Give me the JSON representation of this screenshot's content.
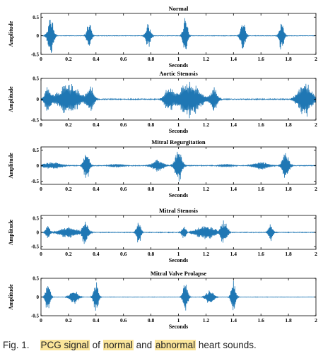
{
  "caption": {
    "prefix": "Fig. 1.",
    "segments": [
      {
        "text": "PCG signal",
        "highlight": true
      },
      {
        "text": " of ",
        "highlight": false
      },
      {
        "text": "normal",
        "highlight": true
      },
      {
        "text": " and ",
        "highlight": false
      },
      {
        "text": "abnormal",
        "highlight": true
      },
      {
        "text": " heart sounds.",
        "highlight": false
      }
    ],
    "highlight_color": "#fbe59a"
  },
  "colors": {
    "signal": "#1f77b4",
    "axes": "#000000"
  },
  "chart_data": [
    {
      "type": "line",
      "title": "Normal",
      "xlabel": "Seconds",
      "ylabel": "Amplitude",
      "xlim": [
        0,
        2
      ],
      "ylim": [
        -0.5,
        0.6
      ],
      "xticks": [
        0,
        0.2,
        0.4,
        0.6,
        0.8,
        1,
        1.2,
        1.4,
        1.6,
        1.8,
        2
      ],
      "xtick_labels": [
        "0",
        "0.2",
        "0.4",
        "0.6",
        "0.8",
        "1",
        "1.2",
        "1.4",
        "1.6",
        "1.8",
        "2"
      ],
      "yticks": [
        -0.5,
        0,
        0.5
      ],
      "ytick_labels": [
        "-0.5",
        "0",
        "0.5"
      ],
      "bursts": [
        {
          "t": 0.07,
          "w": 0.025,
          "a": 0.55,
          "f": 220
        },
        {
          "t": 0.35,
          "w": 0.02,
          "a": 0.4,
          "f": 220
        },
        {
          "t": 0.78,
          "w": 0.022,
          "a": 0.35,
          "f": 220
        },
        {
          "t": 1.05,
          "w": 0.02,
          "a": 0.55,
          "f": 220
        },
        {
          "t": 1.47,
          "w": 0.022,
          "a": 0.4,
          "f": 220
        },
        {
          "t": 1.75,
          "w": 0.02,
          "a": 0.45,
          "f": 220
        }
      ],
      "noise": 0.005
    },
    {
      "type": "line",
      "title": "Aortic Stenosis",
      "xlabel": "Seconds",
      "ylabel": "Amplitude",
      "xlim": [
        0,
        2
      ],
      "ylim": [
        -0.5,
        0.5
      ],
      "xticks": [
        0,
        0.2,
        0.4,
        0.6,
        0.8,
        1,
        1.2,
        1.4,
        1.6,
        1.8,
        2
      ],
      "xtick_labels": [
        "0",
        "0.2",
        "0.4",
        "0.6",
        "0.8",
        "1",
        "1.2",
        "1.4",
        "1.6",
        "1.8",
        "2"
      ],
      "yticks": [
        -0.5,
        0,
        0.5
      ],
      "ytick_labels": [
        "-0.5",
        "0",
        "0.5"
      ],
      "bursts": [
        {
          "t": 0.05,
          "w": 0.03,
          "a": 0.3,
          "f": 180
        },
        {
          "t": 0.2,
          "w": 0.09,
          "a": 0.4,
          "f": 180
        },
        {
          "t": 0.36,
          "w": 0.03,
          "a": 0.35,
          "f": 180
        },
        {
          "t": 0.93,
          "w": 0.04,
          "a": 0.3,
          "f": 180
        },
        {
          "t": 1.08,
          "w": 0.09,
          "a": 0.45,
          "f": 180
        },
        {
          "t": 1.26,
          "w": 0.03,
          "a": 0.3,
          "f": 180
        },
        {
          "t": 1.92,
          "w": 0.06,
          "a": 0.45,
          "f": 180
        }
      ],
      "noise": 0.01
    },
    {
      "type": "line",
      "title": "Mitral Regurgitation",
      "xlabel": "Seconds",
      "ylabel": "Amplitude",
      "xlim": [
        0,
        2
      ],
      "ylim": [
        -0.6,
        0.6
      ],
      "xticks": [
        0,
        0.2,
        0.4,
        0.6,
        0.8,
        1,
        1.2,
        1.4,
        1.6,
        1.8,
        2
      ],
      "xtick_labels": [
        "0",
        "0.2",
        "0.4",
        "0.6",
        "0.8",
        "1",
        "1.2",
        "1.4",
        "1.6",
        "1.8",
        "2"
      ],
      "yticks": [
        -0.5,
        0,
        0.5
      ],
      "ytick_labels": [
        "-0.5",
        "0",
        "0.5"
      ],
      "bursts": [
        {
          "t": 0.08,
          "w": 0.08,
          "a": 0.12,
          "f": 180
        },
        {
          "t": 0.33,
          "w": 0.025,
          "a": 0.5,
          "f": 200
        },
        {
          "t": 0.55,
          "w": 0.06,
          "a": 0.06,
          "f": 180
        },
        {
          "t": 0.85,
          "w": 0.05,
          "a": 0.2,
          "f": 180
        },
        {
          "t": 1.0,
          "w": 0.03,
          "a": 0.55,
          "f": 200
        },
        {
          "t": 1.35,
          "w": 0.06,
          "a": 0.05,
          "f": 180
        },
        {
          "t": 1.6,
          "w": 0.06,
          "a": 0.15,
          "f": 180
        },
        {
          "t": 1.78,
          "w": 0.03,
          "a": 0.45,
          "f": 200
        }
      ],
      "noise": 0.01
    },
    {
      "type": "line",
      "title": "Mitral Stenosis",
      "xlabel": "Seconds",
      "ylabel": "Amplitude",
      "xlim": [
        0,
        2
      ],
      "ylim": [
        -0.6,
        0.6
      ],
      "xticks": [
        0,
        0.2,
        0.4,
        0.6,
        0.8,
        1,
        1.2,
        1.4,
        1.6,
        1.8,
        2
      ],
      "xtick_labels": [
        "0",
        "0.2",
        "0.4",
        "0.6",
        "0.8",
        "1",
        "1.2",
        "1.4",
        "1.6",
        "1.8",
        "2"
      ],
      "yticks": [
        -0.5,
        0,
        0.5
      ],
      "ytick_labels": [
        "-0.5",
        "0",
        "0.5"
      ],
      "bursts": [
        {
          "t": 0.05,
          "w": 0.02,
          "a": 0.25,
          "f": 200
        },
        {
          "t": 0.2,
          "w": 0.08,
          "a": 0.2,
          "f": 180
        },
        {
          "t": 0.32,
          "w": 0.03,
          "a": 0.45,
          "f": 200
        },
        {
          "t": 0.71,
          "w": 0.02,
          "a": 0.45,
          "f": 200
        },
        {
          "t": 1.04,
          "w": 0.02,
          "a": 0.25,
          "f": 200
        },
        {
          "t": 1.2,
          "w": 0.09,
          "a": 0.25,
          "f": 180
        },
        {
          "t": 1.33,
          "w": 0.03,
          "a": 0.45,
          "f": 200
        },
        {
          "t": 1.67,
          "w": 0.02,
          "a": 0.35,
          "f": 200
        }
      ],
      "noise": 0.01
    },
    {
      "type": "line",
      "title": "Mitral Valve Prolapse",
      "xlabel": "Seconds",
      "ylabel": "Amplitude",
      "xlim": [
        0,
        2
      ],
      "ylim": [
        -0.5,
        0.5
      ],
      "xticks": [
        0,
        0.2,
        0.4,
        0.6,
        0.8,
        1,
        1.2,
        1.4,
        1.6,
        1.8,
        2
      ],
      "xtick_labels": [
        "0",
        "0.2",
        "0.4",
        "0.6",
        "0.8",
        "1",
        "1.2",
        "1.4",
        "1.6",
        "1.8",
        "2"
      ],
      "yticks": [
        -0.5,
        0,
        0.5
      ],
      "ytick_labels": [
        "-0.5",
        "0",
        "0.5"
      ],
      "bursts": [
        {
          "t": 0.05,
          "w": 0.02,
          "a": 0.45,
          "f": 200
        },
        {
          "t": 0.24,
          "w": 0.035,
          "a": 0.2,
          "f": 220
        },
        {
          "t": 0.4,
          "w": 0.02,
          "a": 0.45,
          "f": 200
        },
        {
          "t": 1.05,
          "w": 0.02,
          "a": 0.45,
          "f": 200
        },
        {
          "t": 1.23,
          "w": 0.035,
          "a": 0.2,
          "f": 220
        },
        {
          "t": 1.4,
          "w": 0.02,
          "a": 0.45,
          "f": 200
        }
      ],
      "noise": 0.004
    }
  ]
}
